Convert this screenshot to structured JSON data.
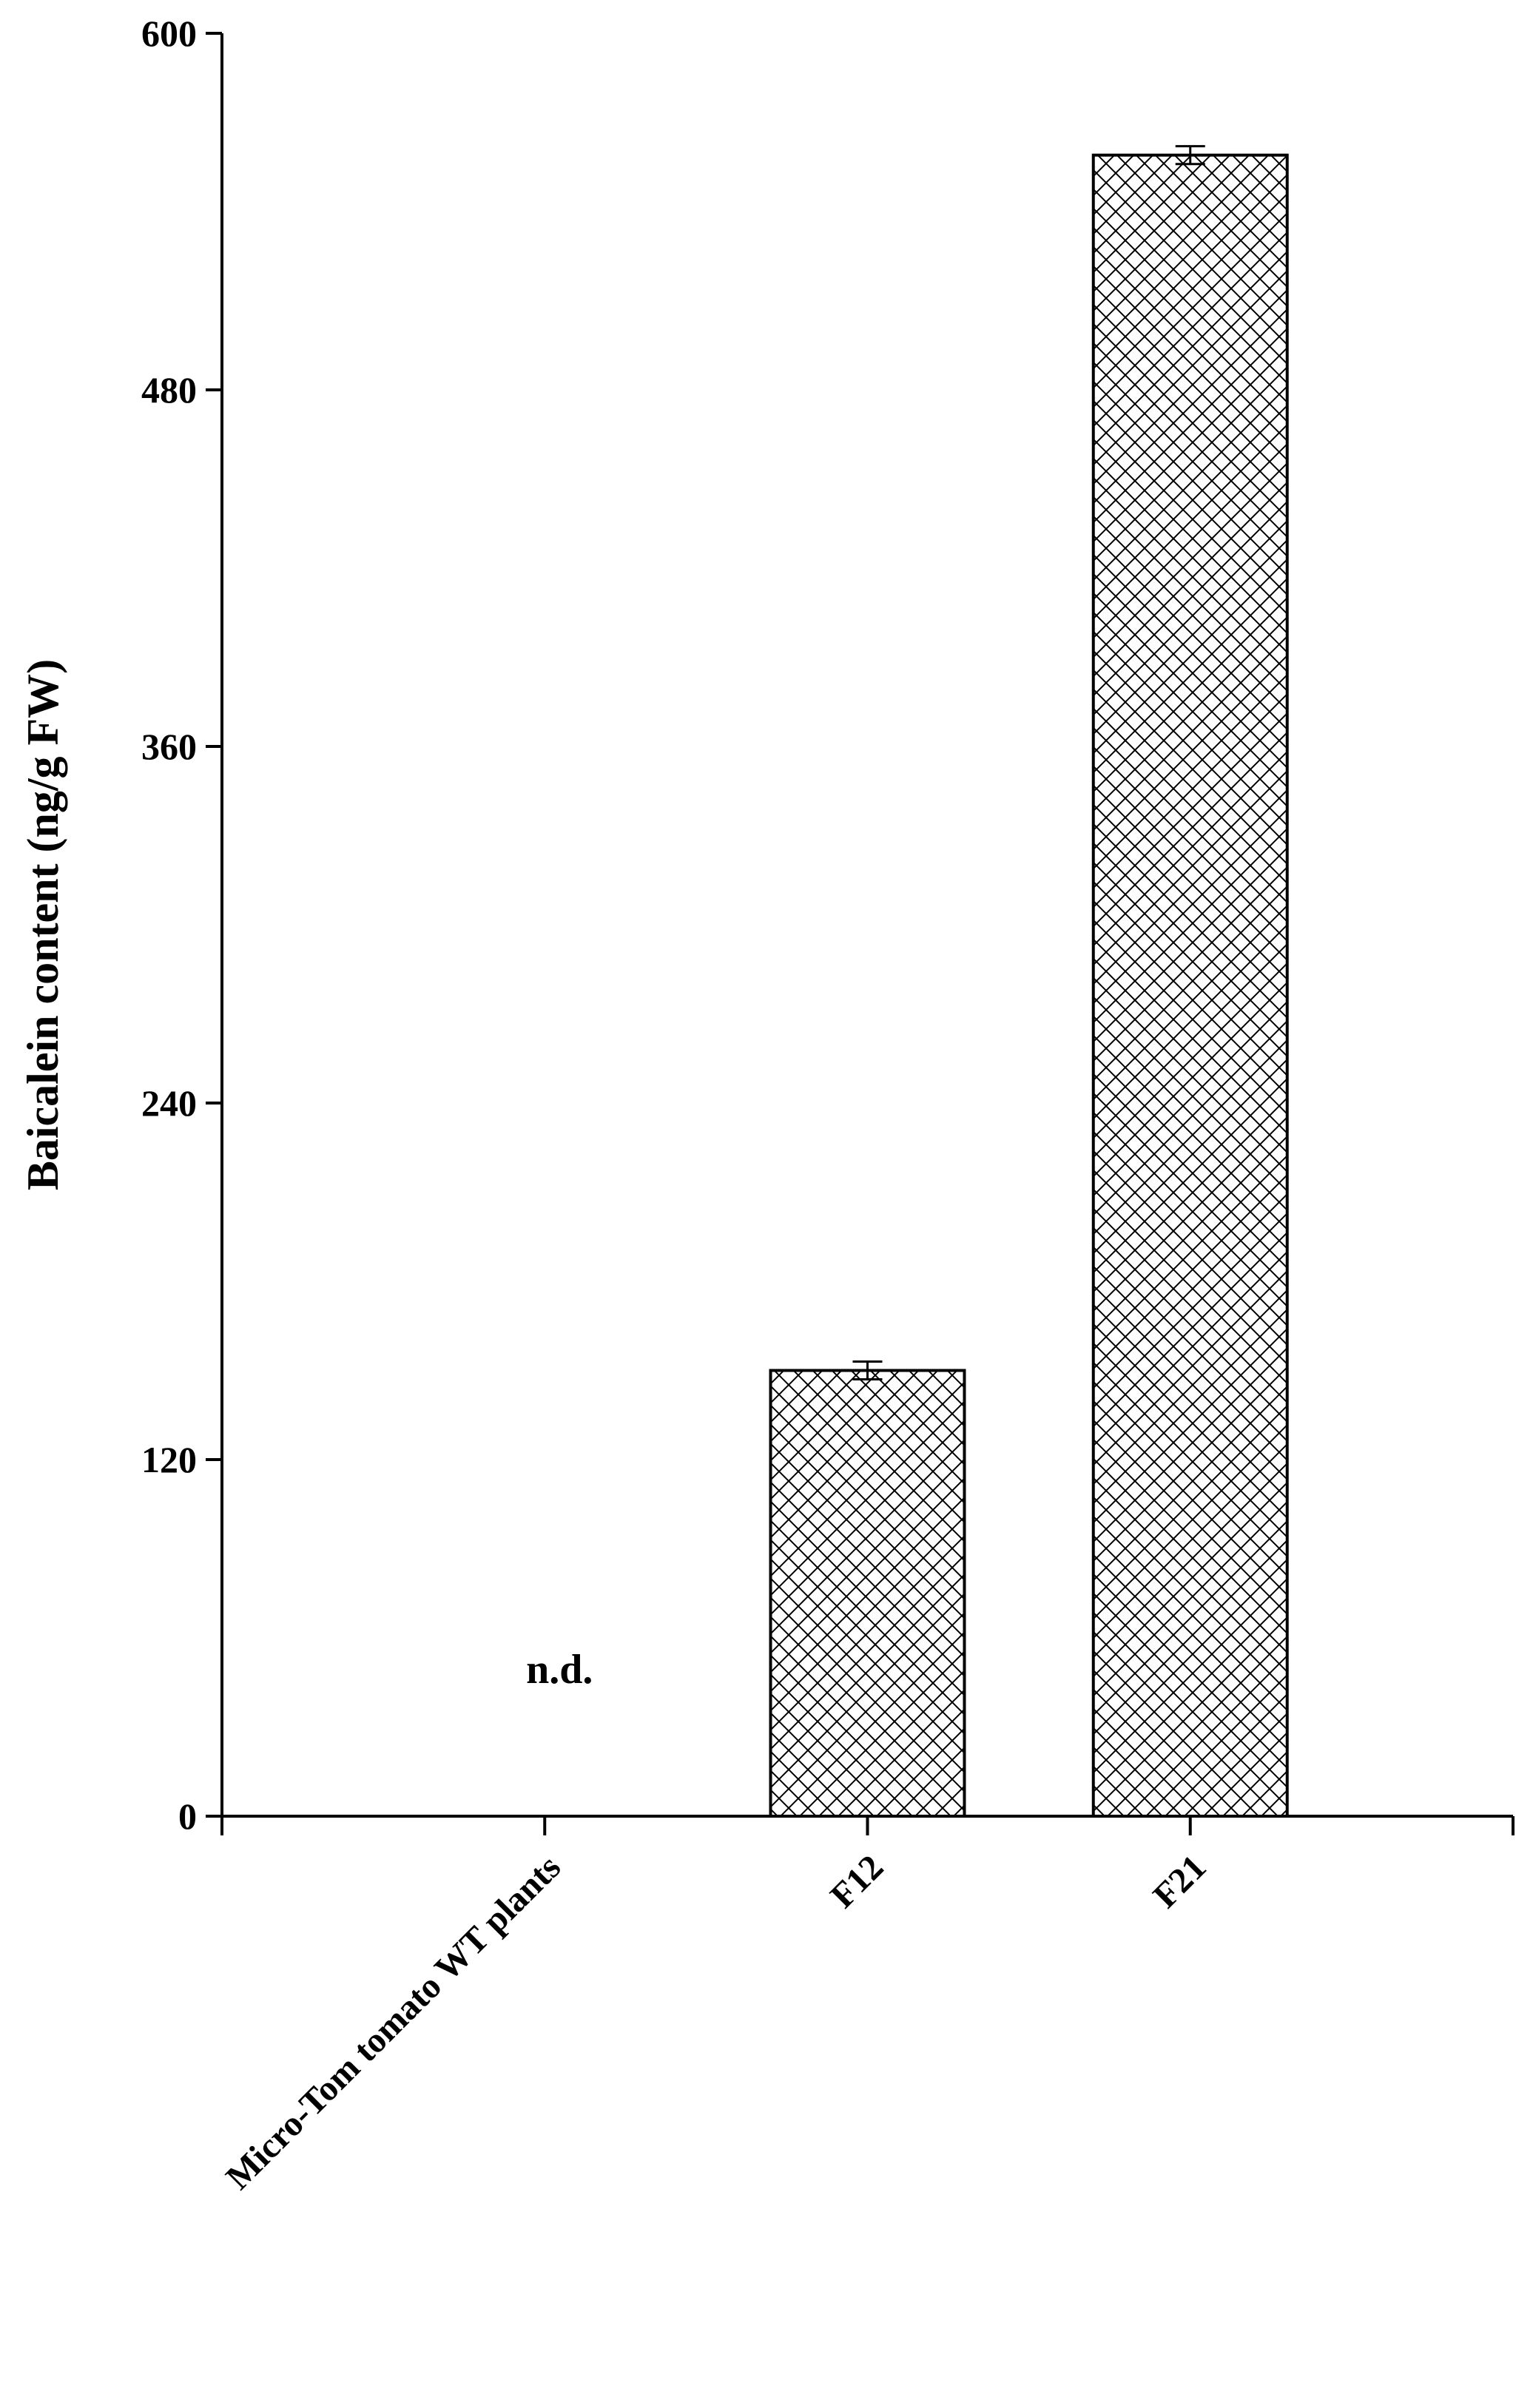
{
  "chart_data": {
    "type": "bar",
    "title": "",
    "xlabel": "",
    "ylabel": "Baicalein content (ng/g FW)",
    "ylim": [
      0,
      600
    ],
    "yticks": [
      0,
      120,
      240,
      360,
      480,
      600
    ],
    "categories": [
      "Micro-Tom tomato WT plants",
      "F12",
      "F21"
    ],
    "values": [
      0,
      150,
      559
    ],
    "errors": [
      0,
      3,
      3
    ],
    "annotations": [
      {
        "category": "Micro-Tom tomato WT plants",
        "text": "n.d."
      }
    ],
    "bar_fill": "crosshatch",
    "bar_color": "#000000",
    "background": "#ffffff",
    "grid": false,
    "legend": "none"
  }
}
